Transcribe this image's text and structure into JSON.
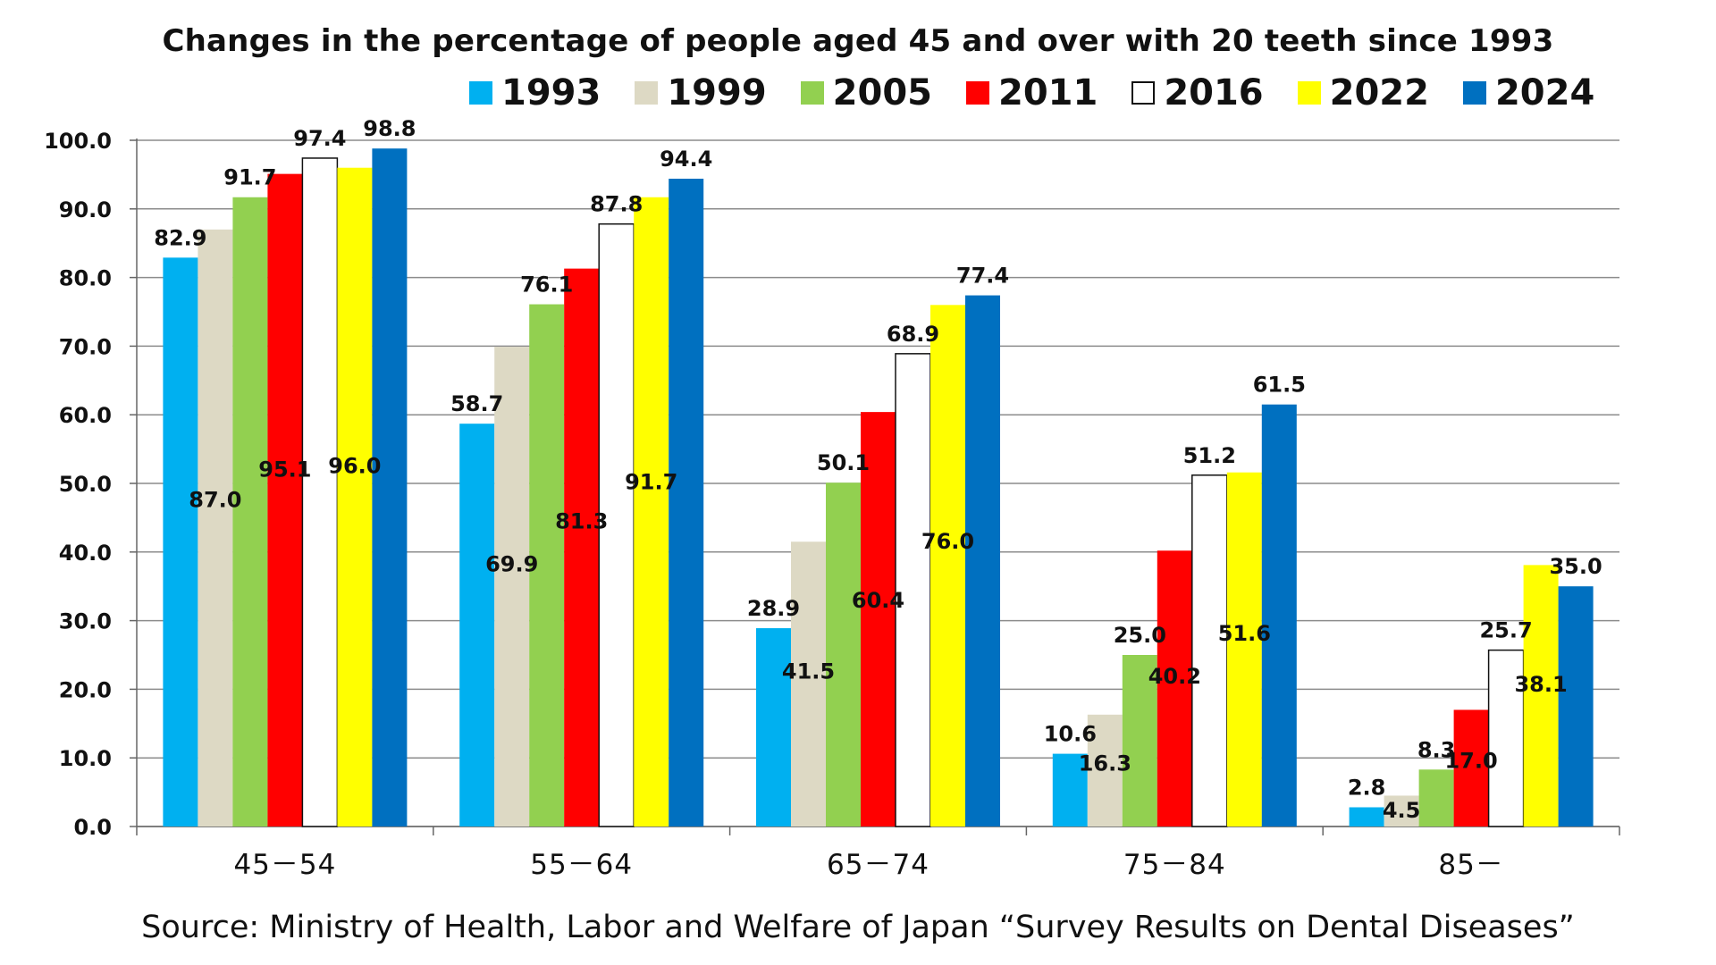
{
  "chart_data": {
    "type": "bar",
    "title": "Changes in the percentage of people aged 45 and over with 20 teeth since 1993",
    "source": "Source: Ministry of Health, Labor and Welfare of Japan “Survey Results on Dental Diseases”",
    "xlabel": "",
    "ylabel": "",
    "ylim": [
      0,
      100
    ],
    "yticks": [
      "0.0",
      "10.0",
      "20.0",
      "30.0",
      "40.0",
      "50.0",
      "60.0",
      "70.0",
      "80.0",
      "90.0",
      "100.0"
    ],
    "grid": true,
    "legend_position": "top",
    "categories": [
      "45－54",
      "55－64",
      "65－74",
      "75－84",
      "85－"
    ],
    "series": [
      {
        "name": "1993",
        "color": "#00B0F0",
        "values": [
          82.9,
          58.7,
          28.9,
          10.6,
          2.8
        ],
        "labels": [
          "82.9",
          "58.7",
          "28.9",
          "10.6",
          "2.8"
        ]
      },
      {
        "name": "1999",
        "color": "#DDD9C4",
        "values": [
          87.0,
          69.9,
          41.5,
          16.3,
          4.5
        ],
        "labels": [
          "87.0",
          "69.9",
          "41.5",
          "16.3",
          "4.5"
        ]
      },
      {
        "name": "2005",
        "color": "#92D050",
        "values": [
          91.7,
          76.1,
          50.1,
          25.0,
          8.3
        ],
        "labels": [
          "91.7",
          "76.1",
          "50.1",
          "25.0",
          "8.3"
        ]
      },
      {
        "name": "2011",
        "color": "#FF0000",
        "values": [
          95.1,
          81.3,
          60.4,
          40.2,
          17.0
        ],
        "labels": [
          "95.1",
          "81.3",
          "60.4",
          "40.2",
          "17.0"
        ]
      },
      {
        "name": "2016",
        "color": "#FFFFFF",
        "values": [
          97.4,
          87.8,
          68.9,
          51.2,
          25.7
        ],
        "labels": [
          "97.4",
          "87.8",
          "68.9",
          "51.2",
          "25.7"
        ]
      },
      {
        "name": "2022",
        "color": "#FFFF00",
        "values": [
          96.0,
          91.7,
          76.0,
          51.6,
          38.1
        ],
        "labels": [
          "96.0",
          "91.7",
          "76.0",
          "51.6",
          "38.1"
        ]
      },
      {
        "name": "2024",
        "color": "#0070C0",
        "values": [
          98.8,
          94.4,
          77.4,
          61.5,
          35.0
        ],
        "labels": [
          "98.8",
          "94.4",
          "77.4",
          "61.5",
          "35.0"
        ]
      }
    ]
  }
}
